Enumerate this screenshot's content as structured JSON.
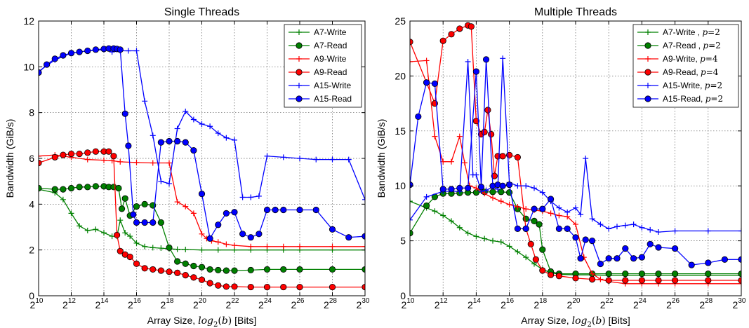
{
  "chart_data": [
    {
      "type": "line",
      "title": "Single Threads",
      "xlabel": "Array Size, log2(b) [Bits]",
      "ylabel": "Bandwidth (GiB/s)",
      "xscale": "log2",
      "xlim": [
        10,
        30
      ],
      "ylim": [
        0,
        12
      ],
      "xticks": [
        10,
        12,
        14,
        16,
        18,
        20,
        22,
        24,
        26,
        28,
        30
      ],
      "xtick_base": "2",
      "yticks": [
        0,
        2,
        4,
        6,
        8,
        10,
        12
      ],
      "grid": true,
      "legend_position": "top-right",
      "series": [
        {
          "name": "A7-Write",
          "color": "#008000",
          "marker": "plus",
          "x": [
            10,
            11,
            11.5,
            12,
            12.5,
            13,
            13.5,
            14,
            14.5,
            14.8,
            15,
            15.3,
            15.6,
            16,
            16.5,
            17,
            17.5,
            18,
            18.5,
            19,
            20,
            21,
            22,
            23,
            24,
            25,
            26,
            28,
            30
          ],
          "y": [
            4.65,
            4.5,
            4.2,
            3.6,
            3.05,
            2.85,
            2.9,
            2.75,
            2.6,
            2.6,
            3.3,
            2.75,
            2.6,
            2.3,
            2.15,
            2.1,
            2.08,
            2.05,
            2.03,
            2.02,
            2.0,
            2.0,
            2.0,
            2.0,
            2.0,
            2.0,
            2.0,
            2.0,
            2.0
          ]
        },
        {
          "name": "A7-Read",
          "color": "#008000",
          "marker": "circle",
          "x": [
            10,
            11,
            11.5,
            12,
            12.5,
            13,
            13.5,
            14,
            14.3,
            14.6,
            14.9,
            15.1,
            15.3,
            15.6,
            16,
            16.5,
            17,
            17.5,
            18,
            18.5,
            19,
            19.5,
            20,
            20.5,
            21,
            21.5,
            22,
            23,
            24,
            25,
            26,
            28,
            30
          ],
          "y": [
            4.7,
            4.65,
            4.65,
            4.7,
            4.75,
            4.75,
            4.78,
            4.78,
            4.75,
            4.75,
            4.7,
            3.8,
            4.25,
            3.5,
            3.9,
            4.0,
            3.95,
            3.2,
            2.1,
            1.5,
            1.4,
            1.3,
            1.25,
            1.15,
            1.12,
            1.1,
            1.1,
            1.12,
            1.15,
            1.15,
            1.15,
            1.15,
            1.15
          ]
        },
        {
          "name": "A9-Write",
          "color": "#ff0000",
          "marker": "plus",
          "x": [
            10,
            11,
            12,
            13,
            14,
            14.5,
            15,
            16,
            17,
            18,
            18.5,
            19,
            19.5,
            20,
            20.3,
            20.6,
            21,
            21.5,
            22,
            23,
            24,
            25,
            26,
            28,
            30
          ],
          "y": [
            6.1,
            6.15,
            6.05,
            5.95,
            5.92,
            5.9,
            5.85,
            5.82,
            5.8,
            5.8,
            4.1,
            3.9,
            3.6,
            2.7,
            2.5,
            2.4,
            2.35,
            2.25,
            2.2,
            2.15,
            2.15,
            2.15,
            2.15,
            2.15,
            2.15
          ]
        },
        {
          "name": "A9-Read",
          "color": "#ff0000",
          "marker": "circle",
          "x": [
            10,
            11,
            11.5,
            12,
            12.5,
            13,
            13.5,
            14,
            14.3,
            14.6,
            14.8,
            15,
            15.3,
            15.6,
            16,
            16.5,
            17,
            17.5,
            18,
            18.5,
            19,
            19.5,
            20,
            20.5,
            21,
            21.5,
            22,
            23,
            24,
            25,
            26,
            28,
            30
          ],
          "y": [
            5.8,
            6.05,
            6.15,
            6.2,
            6.2,
            6.25,
            6.3,
            6.3,
            6.3,
            6.1,
            2.65,
            1.95,
            1.8,
            1.7,
            1.4,
            1.2,
            1.15,
            1.1,
            1.05,
            1.0,
            0.9,
            0.8,
            0.7,
            0.55,
            0.45,
            0.4,
            0.4,
            0.38,
            0.38,
            0.38,
            0.38,
            0.38,
            0.38
          ]
        },
        {
          "name": "A15-Write",
          "color": "#0000ff",
          "marker": "plus",
          "x": [
            10,
            11,
            12,
            13,
            14,
            14.5,
            15,
            15.5,
            16,
            16.5,
            17,
            17.5,
            18,
            18.5,
            19,
            19.5,
            20,
            20.5,
            21,
            21.5,
            22,
            22.5,
            23,
            23.5,
            24,
            25,
            26,
            27,
            28,
            29,
            30
          ],
          "y": [
            9.8,
            10.3,
            10.6,
            10.7,
            10.75,
            10.65,
            10.7,
            10.7,
            10.7,
            8.5,
            7.0,
            5.0,
            4.9,
            7.3,
            8.05,
            7.7,
            7.5,
            7.4,
            7.1,
            6.9,
            6.8,
            4.3,
            4.3,
            4.35,
            6.1,
            6.05,
            6.0,
            5.95,
            5.95,
            5.95,
            4.2
          ]
        },
        {
          "name": "A15-Read",
          "color": "#0000ff",
          "marker": "circle",
          "x": [
            10,
            10.5,
            11,
            11.5,
            12,
            12.5,
            13,
            13.5,
            14,
            14.3,
            14.6,
            14.8,
            15,
            15.3,
            15.5,
            15.8,
            16,
            16.5,
            17,
            17.5,
            18,
            18.5,
            19,
            19.5,
            20,
            20.5,
            21,
            21.5,
            22,
            22.5,
            23,
            23.5,
            24,
            24.5,
            25,
            26,
            27,
            28,
            29,
            30
          ],
          "y": [
            9.75,
            10.1,
            10.35,
            10.5,
            10.6,
            10.65,
            10.7,
            10.75,
            10.78,
            10.8,
            10.8,
            10.78,
            10.75,
            7.95,
            6.55,
            3.55,
            3.2,
            3.2,
            3.2,
            6.7,
            6.75,
            6.75,
            6.7,
            6.35,
            4.45,
            2.5,
            3.1,
            3.6,
            3.65,
            2.7,
            2.55,
            2.7,
            3.75,
            3.75,
            3.75,
            3.75,
            3.75,
            2.9,
            2.55,
            2.6
          ]
        }
      ]
    },
    {
      "type": "line",
      "title": "Multiple Threads",
      "xlabel": "Array Size, log2(b) [Bits]",
      "ylabel": "Bandwidth (GiB/s)",
      "xscale": "log2",
      "xlim": [
        10,
        30
      ],
      "ylim": [
        0,
        25
      ],
      "xticks": [
        10,
        12,
        14,
        16,
        18,
        20,
        22,
        24,
        26,
        28,
        30
      ],
      "xtick_base": "2",
      "yticks": [
        0,
        5,
        10,
        15,
        20,
        25
      ],
      "grid": true,
      "legend_position": "top-right",
      "series": [
        {
          "name": "A7-Write , p=2",
          "label_parts": [
            "A7-Write , ",
            "p",
            "=2"
          ],
          "color": "#008000",
          "marker": "plus",
          "x": [
            10,
            11,
            11.5,
            12,
            12.5,
            13,
            13.5,
            14,
            14.5,
            15,
            15.5,
            16,
            16.5,
            17,
            17.5,
            18,
            18.5,
            19,
            20,
            21,
            22,
            23,
            24,
            25,
            26,
            28,
            30
          ],
          "y": [
            8.6,
            8.0,
            7.7,
            7.3,
            6.8,
            6.2,
            5.7,
            5.4,
            5.2,
            5.0,
            4.9,
            4.5,
            4.0,
            3.5,
            2.9,
            2.4,
            2.1,
            1.95,
            1.9,
            1.9,
            1.85,
            1.85,
            1.85,
            1.85,
            1.85,
            1.85,
            1.85
          ]
        },
        {
          "name": "A7-Read , p=2",
          "label_parts": [
            "A7-Read , ",
            "p",
            "=2"
          ],
          "color": "#008000",
          "marker": "circle",
          "x": [
            10,
            11,
            11.5,
            12,
            12.5,
            13,
            13.5,
            14,
            14.5,
            15,
            15.5,
            16,
            16.5,
            17,
            17.5,
            17.8,
            18,
            18.5,
            19,
            20,
            21,
            22,
            23,
            24,
            25,
            26,
            28,
            30
          ],
          "y": [
            5.7,
            8.2,
            9.0,
            9.3,
            9.3,
            9.35,
            9.4,
            9.4,
            9.45,
            9.45,
            9.45,
            9.4,
            7.9,
            7.0,
            6.8,
            6.5,
            4.2,
            2.2,
            2.0,
            2.0,
            2.0,
            2.0,
            2.0,
            2.0,
            2.0,
            2.0,
            2.0,
            2.0
          ]
        },
        {
          "name": "A9-Write, p=4",
          "label_parts": [
            "A9-Write, ",
            "p",
            "=4"
          ],
          "color": "#ff0000",
          "marker": "plus",
          "x": [
            10,
            11,
            11.5,
            12,
            12.5,
            13,
            13.3,
            13.6,
            14,
            14.5,
            15,
            15.5,
            16,
            16.5,
            17,
            17.5,
            18,
            18.5,
            19,
            19.5,
            20,
            20.5,
            21,
            21.5,
            22,
            23,
            24,
            25,
            26,
            28,
            30
          ],
          "y": [
            21.3,
            21.4,
            14.5,
            12.2,
            12.2,
            14.5,
            12.1,
            10.0,
            9.8,
            9.3,
            8.9,
            8.6,
            8.3,
            8.1,
            7.9,
            7.8,
            7.7,
            7.5,
            7.3,
            7.2,
            6.5,
            3.5,
            2.0,
            1.5,
            1.3,
            1.1,
            1.1,
            1.1,
            1.1,
            1.1,
            1.1
          ]
        },
        {
          "name": "A9-Read, p=4",
          "label_parts": [
            "A9-Read, ",
            "p",
            "=4"
          ],
          "color": "#ff0000",
          "marker": "circle",
          "x": [
            10,
            11,
            11.5,
            12,
            12.5,
            13,
            13.5,
            13.7,
            14,
            14.3,
            14.5,
            14.7,
            14.9,
            15.1,
            15.3,
            15.6,
            16,
            16.5,
            17,
            17.3,
            17.6,
            18,
            18.5,
            19,
            20,
            21,
            22,
            23,
            24,
            25,
            26,
            28,
            30
          ],
          "y": [
            23.1,
            19.4,
            17.5,
            23.2,
            23.8,
            24.3,
            24.6,
            24.5,
            15.9,
            14.7,
            14.9,
            16.9,
            14.7,
            10.9,
            12.7,
            12.7,
            12.8,
            12.6,
            6.1,
            4.7,
            3.3,
            2.3,
            1.9,
            1.8,
            1.6,
            1.5,
            1.4,
            1.4,
            1.4,
            1.4,
            1.4,
            1.4,
            1.4
          ]
        },
        {
          "name": "A15-Write, p=2",
          "label_parts": [
            "A15-Write, ",
            "p",
            "=2"
          ],
          "color": "#0000ff",
          "marker": "plus",
          "x": [
            10,
            11,
            12,
            13,
            13.5,
            13.8,
            14,
            14.3,
            14.6,
            15,
            15.3,
            15.6,
            16,
            16.5,
            17,
            17.5,
            18,
            18.5,
            19,
            19.5,
            20,
            20.3,
            20.6,
            21,
            21.5,
            22,
            22.5,
            23,
            23.5,
            24,
            24.5,
            25,
            26,
            28,
            30
          ],
          "y": [
            6.9,
            9.0,
            9.5,
            9.5,
            21.3,
            11.0,
            11.0,
            9.5,
            9.6,
            9.9,
            9.7,
            21.6,
            10.3,
            10.0,
            10.0,
            9.8,
            9.4,
            8.6,
            8.0,
            7.6,
            8.0,
            7.4,
            12.5,
            7.0,
            6.5,
            6.1,
            6.3,
            6.4,
            6.5,
            6.2,
            6.0,
            5.8,
            5.9,
            5.9,
            5.9
          ]
        },
        {
          "name": "A15-Read, p=2",
          "label_parts": [
            "A15-Read, ",
            "p",
            "=2"
          ],
          "color": "#0000ff",
          "marker": "circle",
          "x": [
            10,
            10.5,
            11,
            11.5,
            12,
            12.5,
            13,
            13.5,
            14,
            14.3,
            14.6,
            15,
            15.3,
            15.6,
            16,
            16.5,
            17,
            17.5,
            18,
            18.5,
            19,
            19.5,
            20,
            20.3,
            20.6,
            21,
            21.5,
            22,
            22.5,
            23,
            23.5,
            24,
            24.5,
            25,
            26,
            27,
            28,
            29,
            30
          ],
          "y": [
            10.1,
            16.3,
            19.4,
            19.3,
            9.7,
            9.7,
            9.8,
            9.8,
            20.4,
            9.9,
            21.5,
            10.0,
            10.1,
            10.0,
            10.1,
            6.1,
            6.1,
            7.9,
            7.9,
            8.8,
            6.1,
            6.1,
            5.3,
            3.4,
            5.1,
            5.0,
            2.9,
            3.4,
            3.4,
            4.3,
            3.4,
            3.5,
            4.7,
            4.4,
            4.3,
            2.8,
            3.0,
            3.3,
            3.3
          ]
        }
      ]
    }
  ]
}
